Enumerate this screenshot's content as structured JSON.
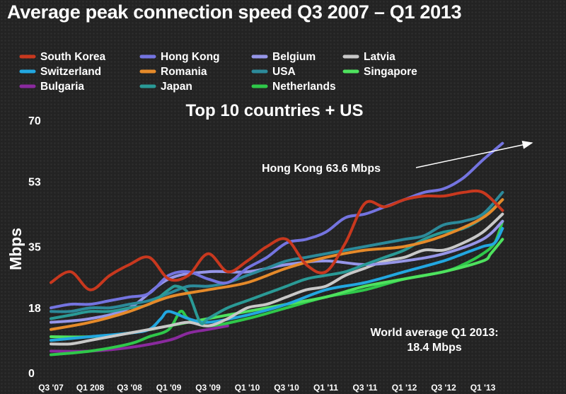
{
  "title": "Average peak connection speed Q3 2007 – Q1 2013",
  "chart_data": {
    "type": "line",
    "subtitle": "Top 10 countries + US",
    "ylabel": "Mbps",
    "xlabel": "",
    "ylim": [
      0,
      70
    ],
    "yticks": [
      0,
      18,
      35,
      53,
      70
    ],
    "xticks": [
      "Q3 '07",
      "Q1 208",
      "Q3 '08",
      "Q1 '09",
      "Q3 '09",
      "Q1 '10",
      "Q3 '10",
      "Q1 '11",
      "Q3 '11",
      "Q1 '12",
      "Q3 '12",
      "Q1 '13"
    ],
    "grid": false,
    "legend_position": "top",
    "series": [
      {
        "name": "South Korea",
        "color": "#c8381e",
        "x": [
          0,
          0.5,
          1,
          1.5,
          2,
          2.5,
          3,
          3.5,
          4,
          4.5,
          5,
          5.5,
          6,
          6.5,
          7,
          7.5,
          8,
          8.5,
          9,
          9.5,
          10,
          10.5,
          11,
          11.5
        ],
        "values": [
          25,
          28,
          23,
          27,
          30,
          32,
          26,
          27,
          33,
          28,
          31,
          35,
          37,
          30,
          28,
          36,
          47,
          46,
          48,
          49,
          49,
          50,
          50,
          45
        ]
      },
      {
        "name": "Switzerland",
        "color": "#22a7e0",
        "x": [
          0,
          1,
          2,
          2.5,
          2.8,
          3,
          3.5,
          4,
          5,
          6,
          7,
          8,
          9,
          10,
          10.5,
          11,
          11.3,
          11.5
        ],
        "values": [
          9,
          10,
          11,
          12,
          15,
          17,
          15,
          14,
          16,
          19,
          23,
          25,
          28,
          31,
          33,
          35,
          36,
          40
        ]
      },
      {
        "name": "Bulgaria",
        "color": "#8a2a9e",
        "x": [
          0,
          1,
          2,
          3,
          3.5,
          4,
          4.5
        ],
        "values": [
          6,
          6,
          7,
          9,
          11,
          12,
          13
        ]
      },
      {
        "name": "Hong Kong",
        "color": "#7474e0",
        "x": [
          0,
          0.5,
          1,
          1.5,
          2,
          2.5,
          3,
          3.5,
          4,
          4.5,
          5,
          5.5,
          6,
          6.5,
          7,
          7.5,
          8,
          8.5,
          9,
          9.5,
          10,
          10.5,
          11,
          11.5
        ],
        "values": [
          18,
          19,
          19,
          20,
          21,
          22,
          27,
          28,
          26,
          25,
          29,
          32,
          36,
          37,
          39,
          43,
          44,
          46,
          48,
          50,
          51,
          54,
          59,
          63.6
        ]
      },
      {
        "name": "Romania",
        "color": "#e58a2a",
        "x": [
          0,
          1,
          2,
          3,
          4,
          5,
          6,
          7,
          8,
          9,
          10,
          11,
          11.5
        ],
        "values": [
          12,
          14,
          17,
          21,
          23,
          25,
          29,
          32,
          34,
          35,
          38,
          43,
          48
        ]
      },
      {
        "name": "Japan",
        "color": "#2a9a96",
        "x": [
          0,
          0.5,
          1,
          1.5,
          2,
          2.5,
          3,
          3.2,
          3.5,
          3.8,
          4,
          4.5,
          5,
          5.5,
          6,
          6.5,
          7,
          7.5,
          8,
          8.5,
          9,
          9.5,
          10,
          10.5,
          11,
          11.5
        ],
        "values": [
          15,
          16,
          17,
          17,
          18,
          19,
          23,
          24,
          22,
          14,
          15,
          18,
          20,
          22,
          24,
          26,
          27,
          28,
          30,
          32,
          34,
          37,
          39,
          40,
          43,
          48
        ]
      },
      {
        "name": "Belgium",
        "color": "#9696e8",
        "x": [
          0,
          1,
          2,
          3,
          4,
          5,
          6,
          7,
          8,
          9,
          10,
          11,
          11.5
        ],
        "values": [
          14,
          15,
          18,
          26,
          28,
          28,
          30,
          31,
          30,
          31,
          33,
          37,
          42
        ]
      },
      {
        "name": "USA",
        "color": "#2c8a9a",
        "x": [
          0,
          0.5,
          1,
          1.5,
          2,
          2.5,
          3,
          3.5,
          4,
          4.5,
          5,
          5.5,
          6,
          6.5,
          7,
          7.5,
          8,
          8.5,
          9,
          9.5,
          10,
          10.5,
          11,
          11.5
        ],
        "values": [
          17,
          17,
          18,
          18,
          19,
          20,
          22,
          24,
          24,
          25,
          27,
          29,
          31,
          32,
          33,
          34,
          35,
          36,
          37,
          38,
          41,
          42,
          44,
          50
        ]
      },
      {
        "name": "Netherlands",
        "color": "#2fc84a",
        "x": [
          0,
          1,
          2,
          2.5,
          3,
          3.3,
          3.5,
          4,
          5,
          6,
          7,
          8,
          9,
          10,
          10.5,
          11,
          11.3,
          11.5
        ],
        "values": [
          5,
          6,
          8,
          10,
          12,
          17,
          15,
          13,
          15,
          18,
          21,
          23,
          26,
          28,
          30,
          33,
          36,
          42
        ]
      },
      {
        "name": "Latvia",
        "color": "#c8c8c8",
        "x": [
          0,
          0.5,
          1,
          1.5,
          2,
          2.5,
          3,
          3.5,
          4,
          4.5,
          5,
          5.5,
          6,
          6.5,
          7,
          7.5,
          8,
          8.5,
          9,
          9.5,
          10,
          10.5,
          11,
          11.5
        ],
        "values": [
          8,
          8,
          9,
          10,
          11,
          12,
          13,
          14,
          13,
          15,
          18,
          19,
          21,
          23,
          24,
          27,
          29,
          31,
          32,
          34,
          34,
          36,
          39,
          44
        ]
      },
      {
        "name": "Singapore",
        "color": "#4ee25e",
        "x": [
          0,
          1,
          2,
          3,
          4,
          5,
          6,
          7,
          8,
          9,
          10,
          11,
          11.2,
          11.5
        ],
        "values": [
          10,
          10,
          11,
          13,
          15,
          17,
          19,
          21,
          24,
          26,
          28,
          31,
          33,
          37
        ]
      }
    ],
    "annotations": [
      {
        "text": "Hong Kong 63.6 Mbps",
        "series": "Hong Kong",
        "x": 11.5,
        "y": 63.6
      },
      {
        "text": "World average Q1 2013:",
        "text2": "18.4 Mbps"
      }
    ]
  }
}
